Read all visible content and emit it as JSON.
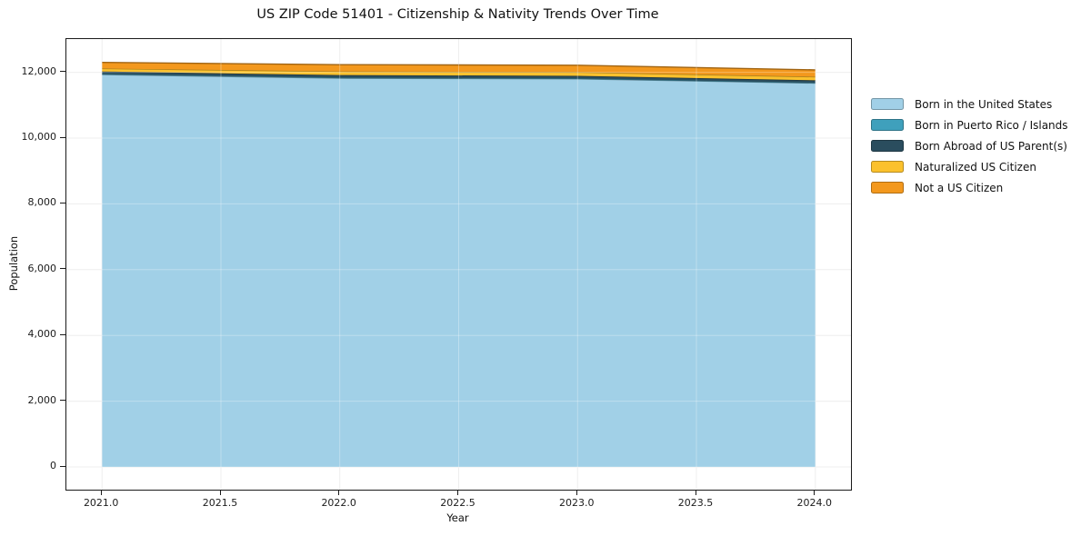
{
  "title": "US ZIP Code 51401 - Citizenship & Nativity Trends Over Time",
  "colors": {
    "grid": "#e9e9e9",
    "grid_overlay": "rgba(255,255,255,0.30)",
    "spine": "#1a1a1a",
    "text": "#1a1a1a"
  },
  "chart_data": {
    "type": "area",
    "stacked": true,
    "title": "US ZIP Code 51401 - Citizenship & Nativity Trends Over Time",
    "xlabel": "Year",
    "ylabel": "Population",
    "x": [
      2021,
      2022,
      2023,
      2024
    ],
    "series": [
      {
        "name": "Born in the United States",
        "color": "#A1D0E7",
        "values": [
          11930,
          11820,
          11800,
          11670
        ]
      },
      {
        "name": "Born in Puerto Rico / Islands",
        "color": "#3FA0BC",
        "values": [
          20,
          18,
          15,
          15
        ]
      },
      {
        "name": "Born Abroad of US Parent(s)",
        "color": "#2A4D5E",
        "values": [
          75,
          78,
          75,
          70
        ]
      },
      {
        "name": "Naturalized US Citizen",
        "color": "#FBC12D",
        "values": [
          90,
          110,
          115,
          110
        ]
      },
      {
        "name": "Not a US Citizen",
        "color": "#F3981D",
        "values": [
          185,
          205,
          210,
          210
        ]
      }
    ],
    "totals": [
      12300,
      12231,
      12215,
      12075
    ],
    "xticks": [
      2021,
      2021.5,
      2022,
      2022.5,
      2023,
      2023.5,
      2024
    ],
    "xtick_labels": [
      "2021.0",
      "2021.5",
      "2022.0",
      "2022.5",
      "2023.0",
      "2023.5",
      "2024.0"
    ],
    "yticks": [
      0,
      2000,
      4000,
      6000,
      8000,
      10000,
      12000
    ],
    "ytick_labels": [
      "0",
      "2,000",
      "4,000",
      "6,000",
      "8,000",
      "10,000",
      "12,000"
    ],
    "xlim": [
      2020.85,
      2024.15
    ],
    "ylim": [
      -690,
      13010
    ],
    "grid": true,
    "legend_position": "right-outside"
  }
}
